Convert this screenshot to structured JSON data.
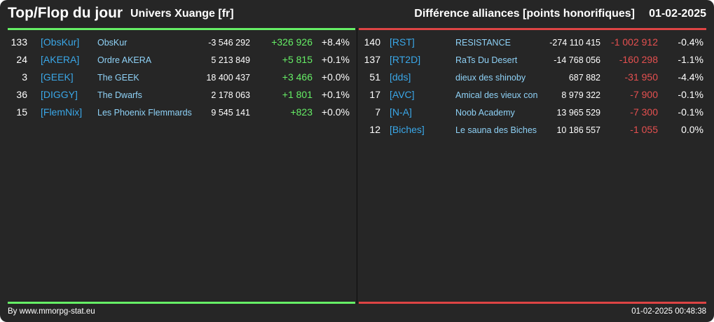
{
  "header": {
    "title": "Top/Flop du jour",
    "subtitle": "Univers Xuange [fr]",
    "category": "Différence alliances [points honorifiques]",
    "date": "01-02-2025"
  },
  "colors": {
    "positive": "#66ee66",
    "negative": "#e55050",
    "tag": "#3aa7e8",
    "name": "#8fd2f7"
  },
  "top": [
    {
      "rank": "133",
      "tag": "[ObsKur]",
      "name": "ObsKur",
      "points": "-3 546 292",
      "diff": "+326 926",
      "pct": "+8.4%"
    },
    {
      "rank": "24",
      "tag": "[AKERA]",
      "name": "Ordre AKERA",
      "points": "5 213 849",
      "diff": "+5 815",
      "pct": "+0.1%"
    },
    {
      "rank": "3",
      "tag": "[GEEK]",
      "name": "The GEEK",
      "points": "18 400 437",
      "diff": "+3 466",
      "pct": "+0.0%"
    },
    {
      "rank": "36",
      "tag": "[DIGGY]",
      "name": "The Dwarfs",
      "points": "2 178 063",
      "diff": "+1 801",
      "pct": "+0.1%"
    },
    {
      "rank": "15",
      "tag": "[FlemNix]",
      "name": "Les Phoenix Flemmards",
      "points": "9 545 141",
      "diff": "+823",
      "pct": "+0.0%"
    }
  ],
  "flop": [
    {
      "rank": "140",
      "tag": "[RST]",
      "name": "RESISTANCE",
      "points": "-274 110 415",
      "diff": "-1 002 912",
      "pct": "-0.4%"
    },
    {
      "rank": "137",
      "tag": "[RT2D]",
      "name": "RaTs Du Desert",
      "points": "-14 768 056",
      "diff": "-160 298",
      "pct": "-1.1%"
    },
    {
      "rank": "51",
      "tag": "[dds]",
      "name": "dieux des shinoby",
      "points": "687 882",
      "diff": "-31 950",
      "pct": "-4.4%"
    },
    {
      "rank": "17",
      "tag": "[AVC]",
      "name": "Amical des vieux con",
      "points": "8 979 322",
      "diff": "-7 900",
      "pct": "-0.1%"
    },
    {
      "rank": "7",
      "tag": "[N-A]",
      "name": "Noob Academy",
      "points": "13 965 529",
      "diff": "-7 300",
      "pct": "-0.1%"
    },
    {
      "rank": "12",
      "tag": "[Biches]",
      "name": "Le sauna des Biches",
      "points": "10 186 557",
      "diff": "-1 055",
      "pct": "0.0%"
    }
  ],
  "footer": {
    "credit": "By www.mmorpg-stat.eu",
    "timestamp": "01-02-2025 00:48:38"
  }
}
